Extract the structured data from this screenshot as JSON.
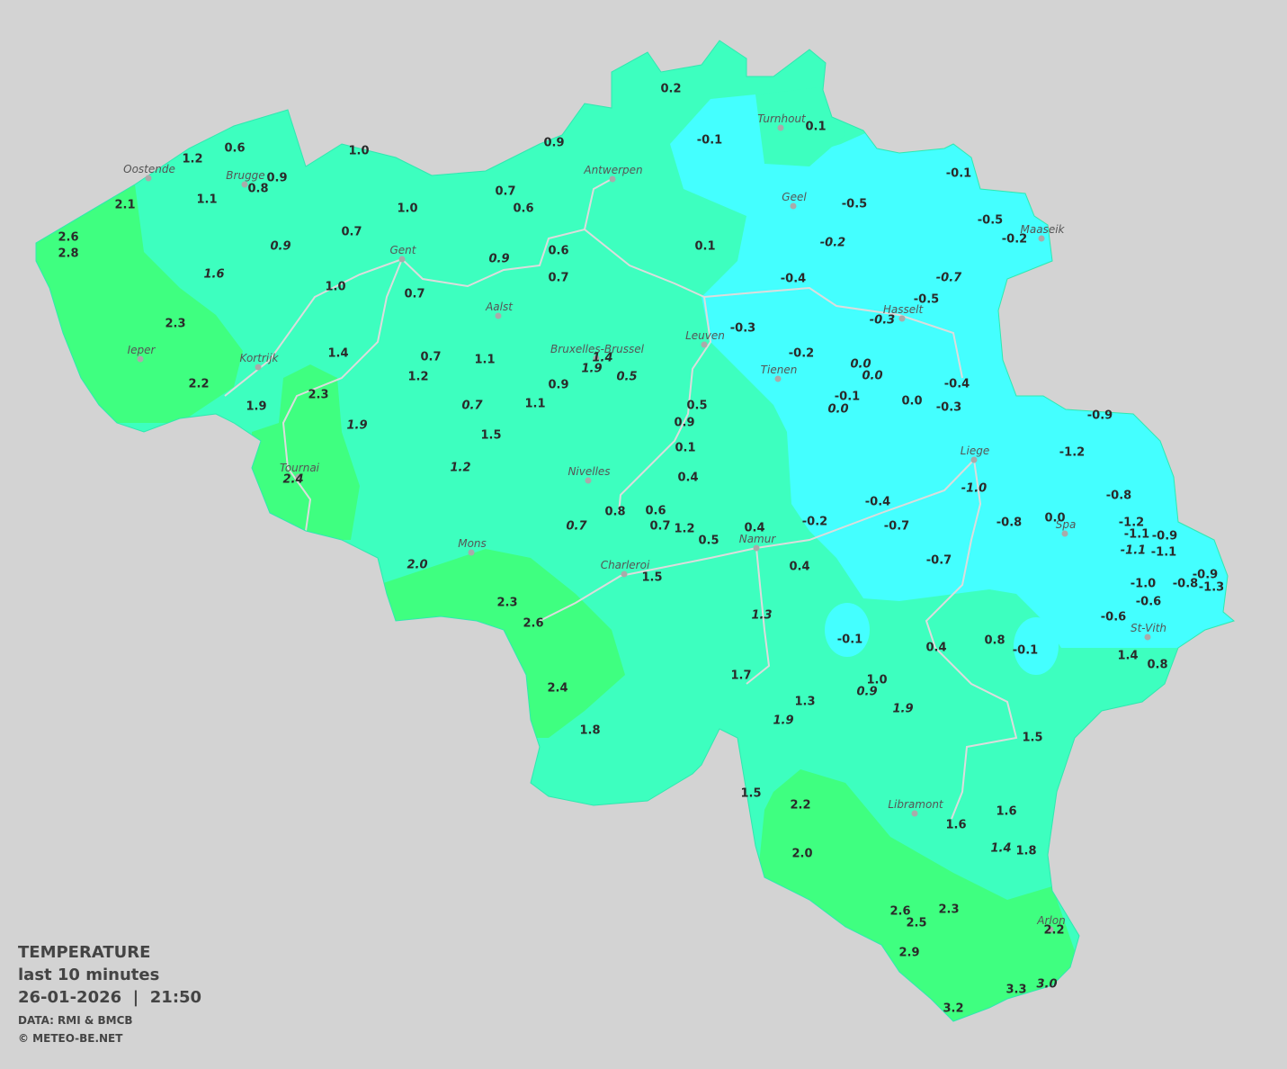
{
  "map": {
    "cities": [
      "Oostende",
      "Brugge",
      "Antwerpen",
      "Turnhout",
      "Geel",
      "Maaseik",
      "Gent",
      "Hasselt",
      "Aalst",
      "Leuven",
      "Bruxelles-Brussel",
      "Ieper",
      "Kortrijk",
      "Tienen",
      "Liege",
      "Tournai",
      "Nivelles",
      "Spa",
      "Mons",
      "Namur",
      "Charleroi",
      "St-Vith",
      "Libramont",
      "Arlon"
    ],
    "stations": [
      {
        "text": "0.2",
        "italic": false
      },
      {
        "text": "-0.1",
        "italic": false
      },
      {
        "text": "0.1",
        "italic": false
      },
      {
        "text": "0.6",
        "italic": false
      },
      {
        "text": "1.2",
        "italic": false
      },
      {
        "text": "1.0",
        "italic": false
      },
      {
        "text": "0.9",
        "italic": false
      },
      {
        "text": "0.9",
        "italic": false
      },
      {
        "text": "0.8",
        "italic": false
      },
      {
        "text": "2.1",
        "italic": false
      },
      {
        "text": "1.1",
        "italic": false
      },
      {
        "text": "0.7",
        "italic": false
      },
      {
        "text": "0.6",
        "italic": false
      },
      {
        "text": "1.0",
        "italic": false
      },
      {
        "text": "-0.1",
        "italic": false
      },
      {
        "text": "-0.5",
        "italic": false
      },
      {
        "text": "-0.5",
        "italic": false
      },
      {
        "text": "-0.2",
        "italic": false
      },
      {
        "text": "-0.2",
        "italic": true
      },
      {
        "text": "2.6",
        "italic": false
      },
      {
        "text": "2.8",
        "italic": false
      },
      {
        "text": "0.7",
        "italic": false
      },
      {
        "text": "0.9",
        "italic": true
      },
      {
        "text": "0.6",
        "italic": false
      },
      {
        "text": "0.1",
        "italic": false
      },
      {
        "text": "0.9",
        "italic": true
      },
      {
        "text": "1.6",
        "italic": true
      },
      {
        "text": "0.7",
        "italic": false
      },
      {
        "text": "-0.4",
        "italic": false
      },
      {
        "text": "-0.7",
        "italic": true
      },
      {
        "text": "1.0",
        "italic": false
      },
      {
        "text": "0.7",
        "italic": false
      },
      {
        "text": "-0.5",
        "italic": false
      },
      {
        "text": "-0.3",
        "italic": true
      },
      {
        "text": "2.3",
        "italic": false
      },
      {
        "text": "-0.3",
        "italic": false
      },
      {
        "text": "1.4",
        "italic": false
      },
      {
        "text": "0.7",
        "italic": false
      },
      {
        "text": "1.1",
        "italic": false
      },
      {
        "text": "1.4",
        "italic": true
      },
      {
        "text": "-0.2",
        "italic": false
      },
      {
        "text": "1.9",
        "italic": true
      },
      {
        "text": "0.5",
        "italic": true
      },
      {
        "text": "0.0",
        "italic": true
      },
      {
        "text": "0.0",
        "italic": true
      },
      {
        "text": "1.2",
        "italic": false
      },
      {
        "text": "-0.4",
        "italic": false
      },
      {
        "text": "2.2",
        "italic": false
      },
      {
        "text": "0.9",
        "italic": false
      },
      {
        "text": "-0.1",
        "italic": false
      },
      {
        "text": "2.3",
        "italic": false
      },
      {
        "text": "1.9",
        "italic": false
      },
      {
        "text": "0.7",
        "italic": true
      },
      {
        "text": "1.1",
        "italic": false
      },
      {
        "text": "0.5",
        "italic": false
      },
      {
        "text": "0.0",
        "italic": true
      },
      {
        "text": "0.0",
        "italic": false
      },
      {
        "text": "-0.3",
        "italic": false
      },
      {
        "text": "-0.9",
        "italic": false
      },
      {
        "text": "1.9",
        "italic": true
      },
      {
        "text": "0.9",
        "italic": false
      },
      {
        "text": "1.5",
        "italic": false
      },
      {
        "text": "0.1",
        "italic": false
      },
      {
        "text": "-1.2",
        "italic": false
      },
      {
        "text": "1.2",
        "italic": true
      },
      {
        "text": "2.4",
        "italic": true
      },
      {
        "text": "0.4",
        "italic": false
      },
      {
        "text": "-1.0",
        "italic": true
      },
      {
        "text": "-0.8",
        "italic": false
      },
      {
        "text": "-0.4",
        "italic": false
      },
      {
        "text": "0.8",
        "italic": false
      },
      {
        "text": "0.6",
        "italic": false
      },
      {
        "text": "0.0",
        "italic": false
      },
      {
        "text": "-0.8",
        "italic": false
      },
      {
        "text": "-1.2",
        "italic": false
      },
      {
        "text": "-0.2",
        "italic": false
      },
      {
        "text": "-0.7",
        "italic": false
      },
      {
        "text": "0.7",
        "italic": true
      },
      {
        "text": "0.7",
        "italic": false
      },
      {
        "text": "1.2",
        "italic": false
      },
      {
        "text": "0.4",
        "italic": false
      },
      {
        "text": "-1.1",
        "italic": false
      },
      {
        "text": "-0.9",
        "italic": false
      },
      {
        "text": "0.5",
        "italic": false
      },
      {
        "text": "-1.1",
        "italic": true
      },
      {
        "text": "-1.1",
        "italic": false
      },
      {
        "text": "2.0",
        "italic": true
      },
      {
        "text": "-0.7",
        "italic": false
      },
      {
        "text": "0.4",
        "italic": false
      },
      {
        "text": "1.5",
        "italic": false
      },
      {
        "text": "-0.9",
        "italic": false
      },
      {
        "text": "-1.0",
        "italic": false
      },
      {
        "text": "-0.8",
        "italic": false
      },
      {
        "text": "-1.3",
        "italic": false
      },
      {
        "text": "2.3",
        "italic": false
      },
      {
        "text": "-0.6",
        "italic": false
      },
      {
        "text": "1.3",
        "italic": true
      },
      {
        "text": "2.6",
        "italic": false
      },
      {
        "text": "-0.6",
        "italic": false
      },
      {
        "text": "-0.1",
        "italic": false
      },
      {
        "text": "0.8",
        "italic": false
      },
      {
        "text": "-0.1",
        "italic": false
      },
      {
        "text": "0.4",
        "italic": false
      },
      {
        "text": "1.4",
        "italic": false
      },
      {
        "text": "0.8",
        "italic": false
      },
      {
        "text": "1.7",
        "italic": false
      },
      {
        "text": "1.0",
        "italic": false
      },
      {
        "text": "0.9",
        "italic": true
      },
      {
        "text": "2.4",
        "italic": false
      },
      {
        "text": "1.3",
        "italic": false
      },
      {
        "text": "1.9",
        "italic": true
      },
      {
        "text": "1.9",
        "italic": true
      },
      {
        "text": "1.8",
        "italic": false
      },
      {
        "text": "1.5",
        "italic": false
      },
      {
        "text": "1.5",
        "italic": false
      },
      {
        "text": "2.2",
        "italic": false
      },
      {
        "text": "1.6",
        "italic": false
      },
      {
        "text": "1.6",
        "italic": false
      },
      {
        "text": "1.4",
        "italic": true
      },
      {
        "text": "1.8",
        "italic": false
      },
      {
        "text": "2.0",
        "italic": false
      },
      {
        "text": "2.6",
        "italic": false
      },
      {
        "text": "2.3",
        "italic": false
      },
      {
        "text": "2.5",
        "italic": false
      },
      {
        "text": "2.2",
        "italic": false
      },
      {
        "text": "2.9",
        "italic": false
      },
      {
        "text": "3.3",
        "italic": false
      },
      {
        "text": "3.0",
        "italic": true
      },
      {
        "text": "3.2",
        "italic": false
      }
    ]
  },
  "legend": {
    "title": "TEMPERATURE",
    "subtitle": "last 10 minutes",
    "timestamp": "26-01-2026  |  21:50",
    "source": "DATA: RMI & BMCB",
    "copyright": "© METEO-BE.NET"
  }
}
